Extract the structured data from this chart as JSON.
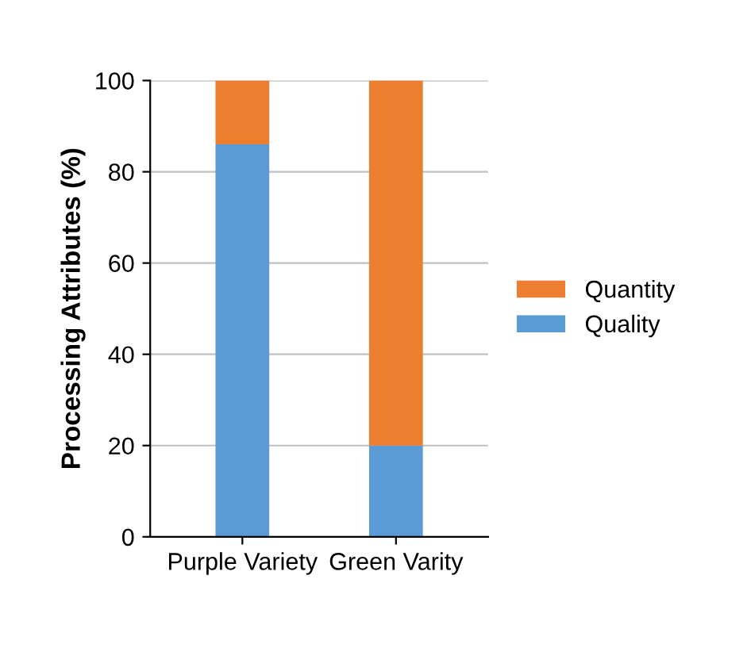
{
  "chart_data": {
    "type": "bar",
    "stacked": true,
    "ylabel": "Processing Attributes (%)",
    "categories": [
      "Purple Variety",
      "Green Varity"
    ],
    "series": [
      {
        "name": "Quality",
        "color": "#5b9bd5",
        "values": [
          86,
          20
        ]
      },
      {
        "name": "Quantity",
        "color": "#ed7d31",
        "values": [
          14,
          80
        ]
      }
    ],
    "ylim": [
      0,
      100
    ],
    "yticks": [
      0,
      20,
      40,
      60,
      80,
      100
    ],
    "grid": "y",
    "legend": "right"
  }
}
